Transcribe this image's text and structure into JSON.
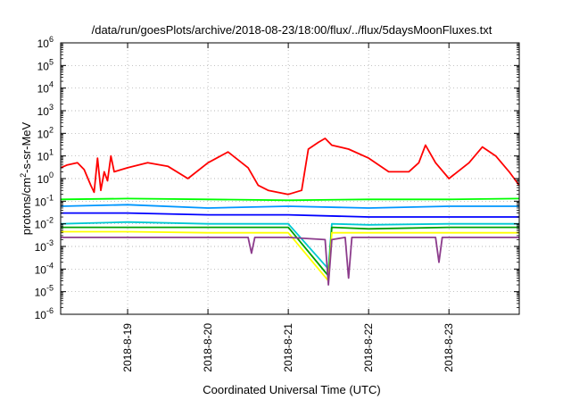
{
  "chart_data": {
    "type": "line",
    "title": "/data/run/goesPlots/archive/2018-08-23/18:00/flux/../flux/5daysMoonFluxes.txt",
    "xlabel": "Coordinated Universal Time (UTC)",
    "ylabel": {
      "pre": "protons/cm",
      "sup": "2",
      "post": "-s-sr-MeV"
    },
    "y_scale": "log",
    "ylim": [
      1e-06,
      1000000.0
    ],
    "y_ticks": [
      {
        "exp": "-6",
        "value": 1e-06
      },
      {
        "exp": "-5",
        "value": 1e-05
      },
      {
        "exp": "-4",
        "value": 0.0001
      },
      {
        "exp": "-3",
        "value": 0.001
      },
      {
        "exp": "-2",
        "value": 0.01
      },
      {
        "exp": "-1",
        "value": 0.1
      },
      {
        "exp": "0",
        "value": 1
      },
      {
        "exp": "1",
        "value": 10
      },
      {
        "exp": "2",
        "value": 100
      },
      {
        "exp": "3",
        "value": 1000
      },
      {
        "exp": "4",
        "value": 10000
      },
      {
        "exp": "5",
        "value": 100000
      },
      {
        "exp": "6",
        "value": 1000000
      }
    ],
    "y_tick_base": "10",
    "xlim": [
      "2018-08-18 04:00",
      "2018-08-23 21:00"
    ],
    "x_ticks": [
      {
        "label": "2018-8-19",
        "t": "2018-08-19"
      },
      {
        "label": "2018-8-20",
        "t": "2018-08-20"
      },
      {
        "label": "2018-8-21",
        "t": "2018-08-21"
      },
      {
        "label": "2018-8-22",
        "t": "2018-08-22"
      },
      {
        "label": "2018-8-23",
        "t": "2018-08-23"
      }
    ],
    "grid": true,
    "series": [
      {
        "color": "#ff0000",
        "points": [
          [
            "2018-08-18 04:00",
            3
          ],
          [
            "2018-08-18 06:00",
            4
          ],
          [
            "2018-08-18 09:00",
            5
          ],
          [
            "2018-08-18 11:00",
            2.5
          ],
          [
            "2018-08-18 13:00",
            0.5
          ],
          [
            "2018-08-18 14:00",
            0.25
          ],
          [
            "2018-08-18 15:00",
            8
          ],
          [
            "2018-08-18 16:00",
            0.3
          ],
          [
            "2018-08-18 17:00",
            2
          ],
          [
            "2018-08-18 18:00",
            0.8
          ],
          [
            "2018-08-18 19:00",
            10
          ],
          [
            "2018-08-18 20:00",
            2
          ],
          [
            "2018-08-19 00:00",
            3
          ],
          [
            "2018-08-19 06:00",
            5
          ],
          [
            "2018-08-19 12:00",
            3.5
          ],
          [
            "2018-08-19 18:00",
            1
          ],
          [
            "2018-08-20 00:00",
            5
          ],
          [
            "2018-08-20 06:00",
            15
          ],
          [
            "2018-08-20 12:00",
            3
          ],
          [
            "2018-08-20 15:00",
            0.5
          ],
          [
            "2018-08-20 18:00",
            0.3
          ],
          [
            "2018-08-21 00:00",
            0.2
          ],
          [
            "2018-08-21 04:00",
            0.3
          ],
          [
            "2018-08-21 06:00",
            20
          ],
          [
            "2018-08-21 09:00",
            40
          ],
          [
            "2018-08-21 11:00",
            60
          ],
          [
            "2018-08-21 13:00",
            30
          ],
          [
            "2018-08-21 18:00",
            20
          ],
          [
            "2018-08-22 00:00",
            8
          ],
          [
            "2018-08-22 06:00",
            2
          ],
          [
            "2018-08-22 12:00",
            2
          ],
          [
            "2018-08-22 15:00",
            5
          ],
          [
            "2018-08-22 17:00",
            30
          ],
          [
            "2018-08-22 20:00",
            5
          ],
          [
            "2018-08-23 00:00",
            1
          ],
          [
            "2018-08-23 06:00",
            5
          ],
          [
            "2018-08-23 10:00",
            25
          ],
          [
            "2018-08-23 14:00",
            10
          ],
          [
            "2018-08-23 18:00",
            2
          ],
          [
            "2018-08-23 21:00",
            0.5
          ]
        ]
      },
      {
        "color": "#00ff00",
        "points": [
          [
            "2018-08-18 04:00",
            0.12
          ],
          [
            "2018-08-19 00:00",
            0.13
          ],
          [
            "2018-08-20 00:00",
            0.12
          ],
          [
            "2018-08-21 00:00",
            0.11
          ],
          [
            "2018-08-22 00:00",
            0.12
          ],
          [
            "2018-08-23 00:00",
            0.12
          ],
          [
            "2018-08-23 21:00",
            0.13
          ]
        ]
      },
      {
        "color": "#0096ff",
        "points": [
          [
            "2018-08-18 04:00",
            0.06
          ],
          [
            "2018-08-19 00:00",
            0.07
          ],
          [
            "2018-08-20 00:00",
            0.05
          ],
          [
            "2018-08-21 00:00",
            0.06
          ],
          [
            "2018-08-22 00:00",
            0.05
          ],
          [
            "2018-08-23 00:00",
            0.06
          ],
          [
            "2018-08-23 21:00",
            0.06
          ]
        ]
      },
      {
        "color": "#0000ff",
        "points": [
          [
            "2018-08-18 04:00",
            0.03
          ],
          [
            "2018-08-19 00:00",
            0.03
          ],
          [
            "2018-08-20 00:00",
            0.025
          ],
          [
            "2018-08-21 00:00",
            0.025
          ],
          [
            "2018-08-22 00:00",
            0.02
          ],
          [
            "2018-08-23 00:00",
            0.02
          ],
          [
            "2018-08-23 21:00",
            0.02
          ]
        ]
      },
      {
        "color": "#00c8d2",
        "points": [
          [
            "2018-08-18 04:00",
            0.01
          ],
          [
            "2018-08-19 00:00",
            0.012
          ],
          [
            "2018-08-20 00:00",
            0.01
          ],
          [
            "2018-08-21 00:00",
            0.01
          ],
          [
            "2018-08-21 12:00",
            0.0001
          ],
          [
            "2018-08-21 13:00",
            0.01
          ],
          [
            "2018-08-22 00:00",
            0.009
          ],
          [
            "2018-08-23 00:00",
            0.01
          ],
          [
            "2018-08-23 21:00",
            0.01
          ]
        ]
      },
      {
        "color": "#00a000",
        "points": [
          [
            "2018-08-18 04:00",
            0.007
          ],
          [
            "2018-08-19 00:00",
            0.007
          ],
          [
            "2018-08-20 00:00",
            0.007
          ],
          [
            "2018-08-21 00:00",
            0.007
          ],
          [
            "2018-08-21 12:00",
            5e-05
          ],
          [
            "2018-08-21 13:00",
            0.007
          ],
          [
            "2018-08-22 00:00",
            0.006
          ],
          [
            "2018-08-23 00:00",
            0.007
          ],
          [
            "2018-08-23 21:00",
            0.007
          ]
        ]
      },
      {
        "color": "#ffff00",
        "points": [
          [
            "2018-08-18 04:00",
            0.0045
          ],
          [
            "2018-08-19 00:00",
            0.0045
          ],
          [
            "2018-08-20 00:00",
            0.004
          ],
          [
            "2018-08-21 00:00",
            0.004
          ],
          [
            "2018-08-21 12:00",
            3e-05
          ],
          [
            "2018-08-21 13:00",
            0.004
          ],
          [
            "2018-08-22 00:00",
            0.004
          ],
          [
            "2018-08-23 00:00",
            0.004
          ],
          [
            "2018-08-23 21:00",
            0.004
          ]
        ]
      },
      {
        "color": "#8c3c8c",
        "points": [
          [
            "2018-08-18 04:00",
            0.0025
          ],
          [
            "2018-08-19 00:00",
            0.0025
          ],
          [
            "2018-08-20 00:00",
            0.0025
          ],
          [
            "2018-08-20 12:00",
            0.0025
          ],
          [
            "2018-08-20 13:00",
            0.0005
          ],
          [
            "2018-08-20 14:00",
            0.0025
          ],
          [
            "2018-08-21 00:00",
            0.0025
          ],
          [
            "2018-08-21 11:00",
            0.002
          ],
          [
            "2018-08-21 12:00",
            2e-05
          ],
          [
            "2018-08-21 13:00",
            0.002
          ],
          [
            "2018-08-21 17:00",
            0.0025
          ],
          [
            "2018-08-21 18:00",
            4e-05
          ],
          [
            "2018-08-21 19:00",
            0.0025
          ],
          [
            "2018-08-22 00:00",
            0.0025
          ],
          [
            "2018-08-22 20:00",
            0.0025
          ],
          [
            "2018-08-22 21:00",
            0.0002
          ],
          [
            "2018-08-22 22:00",
            0.0025
          ],
          [
            "2018-08-23 21:00",
            0.0025
          ]
        ]
      }
    ]
  }
}
